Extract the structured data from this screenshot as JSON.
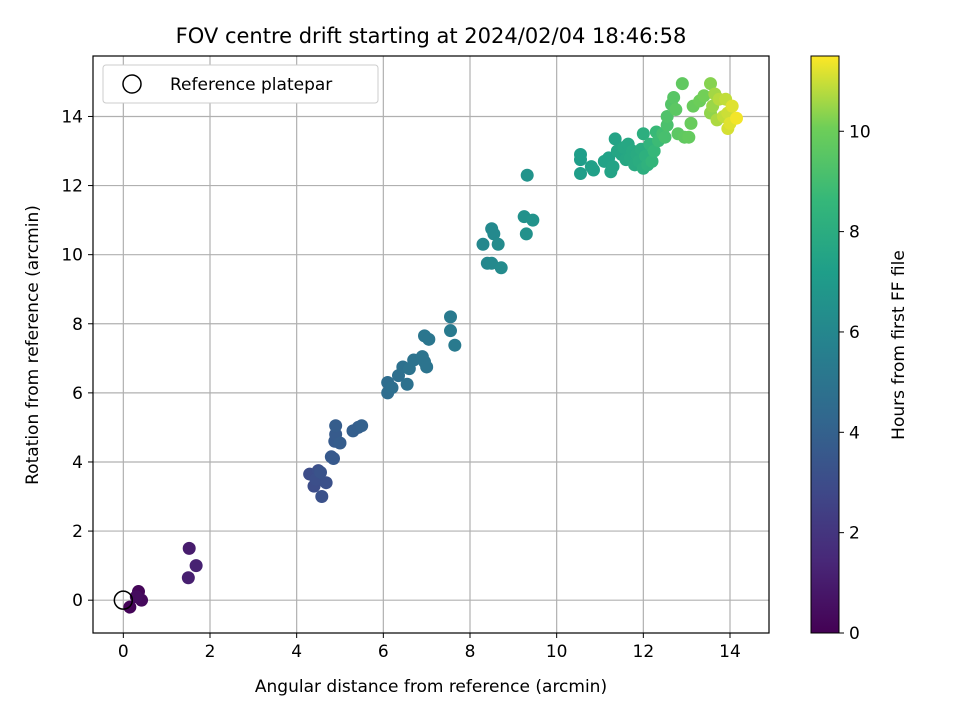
{
  "chart_data": {
    "type": "scatter",
    "title": "FOV centre drift starting at 2024/02/04 18:46:58",
    "xlabel": "Angular distance from reference (arcmin)",
    "ylabel": "Rotation from reference (arcmin)",
    "xlim": [
      -0.7,
      14.9
    ],
    "ylim": [
      -0.95,
      15.75
    ],
    "xticks": [
      0,
      2,
      4,
      6,
      8,
      10,
      12,
      14
    ],
    "yticks": [
      0,
      2,
      4,
      6,
      8,
      10,
      12,
      14
    ],
    "grid": true,
    "legend": {
      "position": "top-left",
      "entries": [
        "Reference platepar"
      ]
    },
    "reference_point": {
      "x": 0,
      "y": 0
    },
    "colorbar": {
      "label": "Hours from first FF file",
      "colormap": "viridis",
      "range": [
        0,
        11.5
      ],
      "ticks": [
        0,
        2,
        4,
        6,
        8,
        10
      ]
    },
    "points": [
      {
        "x": 0.15,
        "y": -0.2,
        "c": 0.1
      },
      {
        "x": 0.35,
        "y": 0.25,
        "c": 0.2
      },
      {
        "x": 0.42,
        "y": 0.0,
        "c": 0.3
      },
      {
        "x": 0.3,
        "y": 0.1,
        "c": 0.4
      },
      {
        "x": 1.52,
        "y": 1.5,
        "c": 1.0
      },
      {
        "x": 1.5,
        "y": 0.65,
        "c": 1.1
      },
      {
        "x": 1.68,
        "y": 1.0,
        "c": 1.2
      },
      {
        "x": 4.3,
        "y": 3.65,
        "c": 3.0
      },
      {
        "x": 4.4,
        "y": 3.3,
        "c": 3.0
      },
      {
        "x": 4.5,
        "y": 3.75,
        "c": 3.1
      },
      {
        "x": 4.45,
        "y": 3.5,
        "c": 3.1
      },
      {
        "x": 4.58,
        "y": 3.0,
        "c": 3.2
      },
      {
        "x": 4.68,
        "y": 3.4,
        "c": 3.2
      },
      {
        "x": 4.55,
        "y": 3.7,
        "c": 3.3
      },
      {
        "x": 4.8,
        "y": 4.15,
        "c": 3.6
      },
      {
        "x": 4.85,
        "y": 4.1,
        "c": 3.6
      },
      {
        "x": 4.88,
        "y": 4.6,
        "c": 3.7
      },
      {
        "x": 4.9,
        "y": 4.8,
        "c": 3.7
      },
      {
        "x": 4.9,
        "y": 5.05,
        "c": 3.8
      },
      {
        "x": 5.0,
        "y": 4.55,
        "c": 3.8
      },
      {
        "x": 5.3,
        "y": 4.9,
        "c": 3.9
      },
      {
        "x": 5.42,
        "y": 5.0,
        "c": 3.9
      },
      {
        "x": 5.5,
        "y": 5.05,
        "c": 4.0
      },
      {
        "x": 6.1,
        "y": 6.3,
        "c": 4.6
      },
      {
        "x": 6.1,
        "y": 6.0,
        "c": 4.6
      },
      {
        "x": 6.2,
        "y": 6.15,
        "c": 4.7
      },
      {
        "x": 6.35,
        "y": 6.5,
        "c": 4.7
      },
      {
        "x": 6.45,
        "y": 6.75,
        "c": 4.8
      },
      {
        "x": 6.55,
        "y": 6.25,
        "c": 4.8
      },
      {
        "x": 6.6,
        "y": 6.7,
        "c": 4.9
      },
      {
        "x": 6.7,
        "y": 6.95,
        "c": 4.9
      },
      {
        "x": 6.9,
        "y": 7.05,
        "c": 5.0
      },
      {
        "x": 6.95,
        "y": 6.9,
        "c": 5.0
      },
      {
        "x": 7.0,
        "y": 6.75,
        "c": 5.0
      },
      {
        "x": 6.95,
        "y": 7.65,
        "c": 5.1
      },
      {
        "x": 7.05,
        "y": 7.55,
        "c": 5.1
      },
      {
        "x": 7.55,
        "y": 8.2,
        "c": 5.3
      },
      {
        "x": 7.55,
        "y": 7.8,
        "c": 5.3
      },
      {
        "x": 7.65,
        "y": 7.38,
        "c": 5.3
      },
      {
        "x": 8.3,
        "y": 10.3,
        "c": 6.0
      },
      {
        "x": 8.4,
        "y": 9.75,
        "c": 6.0
      },
      {
        "x": 8.5,
        "y": 9.75,
        "c": 6.1
      },
      {
        "x": 8.5,
        "y": 10.75,
        "c": 6.1
      },
      {
        "x": 8.55,
        "y": 10.6,
        "c": 6.1
      },
      {
        "x": 8.65,
        "y": 10.3,
        "c": 6.2
      },
      {
        "x": 8.72,
        "y": 9.62,
        "c": 6.2
      },
      {
        "x": 9.25,
        "y": 11.1,
        "c": 6.5
      },
      {
        "x": 9.3,
        "y": 10.6,
        "c": 6.5
      },
      {
        "x": 9.32,
        "y": 12.3,
        "c": 6.6
      },
      {
        "x": 9.45,
        "y": 11.0,
        "c": 6.6
      },
      {
        "x": 10.55,
        "y": 12.9,
        "c": 7.2
      },
      {
        "x": 10.55,
        "y": 12.75,
        "c": 7.2
      },
      {
        "x": 10.55,
        "y": 12.35,
        "c": 7.2
      },
      {
        "x": 10.8,
        "y": 12.55,
        "c": 7.3
      },
      {
        "x": 10.85,
        "y": 12.45,
        "c": 7.3
      },
      {
        "x": 11.1,
        "y": 12.7,
        "c": 7.4
      },
      {
        "x": 11.2,
        "y": 12.8,
        "c": 7.4
      },
      {
        "x": 11.25,
        "y": 12.4,
        "c": 7.5
      },
      {
        "x": 11.3,
        "y": 12.55,
        "c": 7.5
      },
      {
        "x": 11.35,
        "y": 13.35,
        "c": 7.5
      },
      {
        "x": 11.4,
        "y": 13.0,
        "c": 7.6
      },
      {
        "x": 11.5,
        "y": 12.9,
        "c": 7.6
      },
      {
        "x": 11.55,
        "y": 13.1,
        "c": 7.7
      },
      {
        "x": 11.6,
        "y": 12.75,
        "c": 7.7
      },
      {
        "x": 11.65,
        "y": 13.2,
        "c": 7.7
      },
      {
        "x": 11.7,
        "y": 12.8,
        "c": 7.8
      },
      {
        "x": 11.75,
        "y": 13.0,
        "c": 7.8
      },
      {
        "x": 11.8,
        "y": 12.6,
        "c": 7.9
      },
      {
        "x": 11.85,
        "y": 12.9,
        "c": 7.9
      },
      {
        "x": 11.9,
        "y": 12.7,
        "c": 8.0
      },
      {
        "x": 11.95,
        "y": 13.05,
        "c": 8.0
      },
      {
        "x": 12.0,
        "y": 12.5,
        "c": 8.1
      },
      {
        "x": 12.0,
        "y": 13.5,
        "c": 8.1
      },
      {
        "x": 12.05,
        "y": 12.85,
        "c": 8.2
      },
      {
        "x": 12.1,
        "y": 12.6,
        "c": 8.3
      },
      {
        "x": 12.15,
        "y": 13.2,
        "c": 8.4
      },
      {
        "x": 12.2,
        "y": 12.7,
        "c": 8.5
      },
      {
        "x": 12.25,
        "y": 13.0,
        "c": 8.6
      },
      {
        "x": 12.3,
        "y": 13.55,
        "c": 8.7
      },
      {
        "x": 12.35,
        "y": 13.3,
        "c": 8.8
      },
      {
        "x": 12.45,
        "y": 13.5,
        "c": 9.0
      },
      {
        "x": 12.5,
        "y": 13.4,
        "c": 9.1
      },
      {
        "x": 12.55,
        "y": 13.75,
        "c": 9.2
      },
      {
        "x": 12.55,
        "y": 14.0,
        "c": 9.3
      },
      {
        "x": 12.65,
        "y": 14.35,
        "c": 9.4
      },
      {
        "x": 12.7,
        "y": 14.55,
        "c": 9.5
      },
      {
        "x": 12.75,
        "y": 14.2,
        "c": 9.6
      },
      {
        "x": 12.8,
        "y": 13.5,
        "c": 9.6
      },
      {
        "x": 12.9,
        "y": 14.95,
        "c": 9.7
      },
      {
        "x": 12.95,
        "y": 13.4,
        "c": 9.7
      },
      {
        "x": 13.05,
        "y": 13.4,
        "c": 9.8
      },
      {
        "x": 13.1,
        "y": 13.8,
        "c": 9.9
      },
      {
        "x": 13.15,
        "y": 14.3,
        "c": 9.9
      },
      {
        "x": 13.3,
        "y": 14.45,
        "c": 10.0
      },
      {
        "x": 13.4,
        "y": 14.6,
        "c": 10.1
      },
      {
        "x": 13.55,
        "y": 14.95,
        "c": 10.3
      },
      {
        "x": 13.55,
        "y": 14.1,
        "c": 10.4
      },
      {
        "x": 13.6,
        "y": 14.3,
        "c": 10.5
      },
      {
        "x": 13.65,
        "y": 14.65,
        "c": 10.6
      },
      {
        "x": 13.7,
        "y": 13.9,
        "c": 10.7
      },
      {
        "x": 13.75,
        "y": 14.5,
        "c": 10.8
      },
      {
        "x": 13.85,
        "y": 14.0,
        "c": 10.9
      },
      {
        "x": 13.9,
        "y": 14.5,
        "c": 10.9
      },
      {
        "x": 13.95,
        "y": 14.1,
        "c": 11.0
      },
      {
        "x": 13.95,
        "y": 13.65,
        "c": 11.1
      },
      {
        "x": 14.0,
        "y": 13.8,
        "c": 11.2
      },
      {
        "x": 14.05,
        "y": 14.3,
        "c": 11.2
      },
      {
        "x": 14.15,
        "y": 13.95,
        "c": 11.4
      }
    ]
  }
}
